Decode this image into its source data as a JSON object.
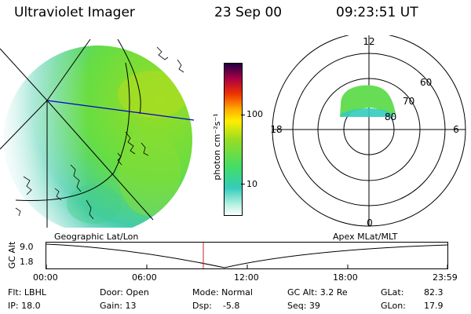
{
  "header": {
    "title": "Ultraviolet Imager",
    "date": "23 Sep 00",
    "time": "09:23:51 UT"
  },
  "colorbar": {
    "unit_label": "photon cm⁻²s⁻¹",
    "ticks": [
      "100",
      "10"
    ]
  },
  "polar": {
    "mlt_labels": [
      "12",
      "18",
      "6",
      "0"
    ],
    "lat_labels": [
      "60",
      "70",
      "80"
    ]
  },
  "timeline": {
    "left_label": "Geographic Lat/Lon",
    "right_label": "Apex MLat/MLT",
    "y_axis_label": "GC Alt",
    "y_ticks": [
      "9.0",
      "1.8"
    ],
    "x_ticks": [
      "00:00",
      "06:00",
      "12:00",
      "18:00",
      "23:59"
    ]
  },
  "status": {
    "flt": "Flt: LBHL",
    "ip": "IP: 18.0",
    "door": "Door: Open",
    "gain": "Gain: 13",
    "mode": "Mode: Normal",
    "dsp": "Dsp:    -5.8",
    "gc_alt": "GC Alt: 3.2 Re",
    "seq": "Seq: 39",
    "glat_label": "GLat:",
    "glat_value": "82.3",
    "glon_label": "GLon:",
    "glon_value": "17.9"
  },
  "colors": {
    "scale": [
      "#ffffff",
      "#aaeedd",
      "#33ccbb",
      "#44dd66",
      "#99dd22",
      "#ffaa00",
      "#ee3300",
      "#aa0044",
      "#220044"
    ]
  }
}
